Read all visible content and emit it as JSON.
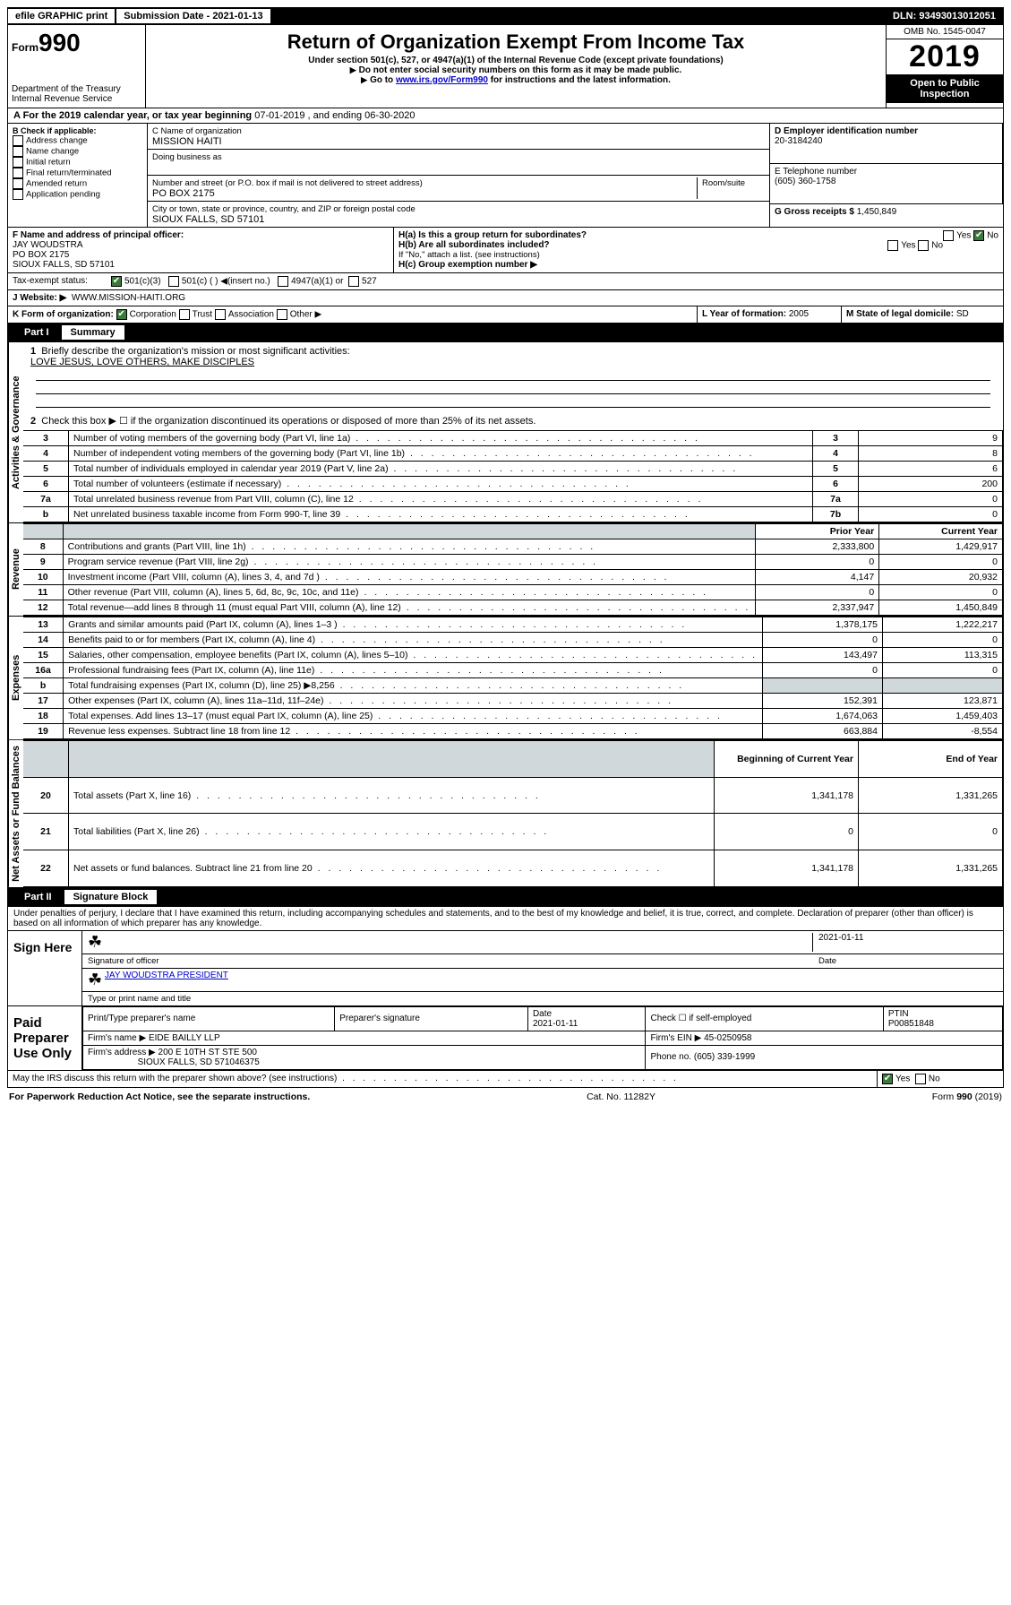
{
  "top": {
    "efile": "efile GRAPHIC print",
    "sub_date_label": "Submission Date - 2021-01-13",
    "dln": "DLN: 93493013012051"
  },
  "header": {
    "form_prefix": "Form",
    "form_number": "990",
    "dept": "Department of the Treasury Internal Revenue Service",
    "title": "Return of Organization Exempt From Income Tax",
    "subtitle": "Under section 501(c), 527, or 4947(a)(1) of the Internal Revenue Code (except private foundations)",
    "note1": "Do not enter social security numbers on this form as it may be made public.",
    "note2_pre": "Go to ",
    "note2_link": "www.irs.gov/Form990",
    "note2_post": " for instructions and the latest information.",
    "omb": "OMB No. 1545-0047",
    "year": "2019",
    "inspect": "Open to Public Inspection"
  },
  "period": {
    "prefix": "A For the 2019 calendar year, or tax year beginning ",
    "begin": "07-01-2019",
    "mid": " , and ending ",
    "end": "06-30-2020"
  },
  "block_b": {
    "heading": "B Check if applicable:",
    "items": [
      "Address change",
      "Name change",
      "Initial return",
      "Final return/terminated",
      "Amended return",
      "Application pending"
    ]
  },
  "block_c": {
    "name_label": "C Name of organization",
    "name": "MISSION HAITI",
    "dba_label": "Doing business as",
    "addr_label": "Number and street (or P.O. box if mail is not delivered to street address)",
    "room_label": "Room/suite",
    "addr": "PO BOX 2175",
    "city_label": "City or town, state or province, country, and ZIP or foreign postal code",
    "city": "SIOUX FALLS, SD  57101"
  },
  "block_d": {
    "label": "D Employer identification number",
    "value": "20-3184240"
  },
  "block_e": {
    "label": "E Telephone number",
    "value": "(605) 360-1758"
  },
  "block_g": {
    "label": "G Gross receipts $",
    "value": "1,450,849"
  },
  "block_f": {
    "label": "F  Name and address of principal officer:",
    "name": "JAY WOUDSTRA",
    "addr1": "PO BOX 2175",
    "addr2": "SIOUX FALLS, SD  57101"
  },
  "block_h": {
    "a": "H(a)  Is this a group return for subordinates?",
    "b": "H(b)  Are all subordinates included?",
    "b_note": "If \"No,\" attach a list. (see instructions)",
    "c": "H(c)  Group exemption number ▶",
    "yes": "Yes",
    "no": "No"
  },
  "tax_status": {
    "label": "Tax-exempt status:",
    "opt1": "501(c)(3)",
    "opt2": "501(c) (  ) ◀(insert no.)",
    "opt3": "4947(a)(1) or",
    "opt4": "527"
  },
  "website": {
    "label": "J   Website: ▶",
    "value": "WWW.MISSION-HAITI.ORG"
  },
  "block_k": {
    "label": "K Form of organization:",
    "corp": "Corporation",
    "trust": "Trust",
    "assoc": "Association",
    "other": "Other ▶"
  },
  "block_l": {
    "label": "L Year of formation:",
    "value": "2005"
  },
  "block_m": {
    "label": "M State of legal domicile:",
    "value": "SD"
  },
  "part1": {
    "label": "Part I",
    "title": "Summary"
  },
  "summary": {
    "q1": "Briefly describe the organization's mission or most significant activities:",
    "mission": "LOVE JESUS, LOVE OTHERS, MAKE DISCIPLES",
    "q2": "Check this box ▶ ☐  if the organization discontinued its operations or disposed of more than 25% of its net assets.",
    "rows_gov": [
      {
        "n": "3",
        "d": "Number of voting members of the governing body (Part VI, line 1a)",
        "c": "3",
        "v": "9"
      },
      {
        "n": "4",
        "d": "Number of independent voting members of the governing body (Part VI, line 1b)",
        "c": "4",
        "v": "8"
      },
      {
        "n": "5",
        "d": "Total number of individuals employed in calendar year 2019 (Part V, line 2a)",
        "c": "5",
        "v": "6"
      },
      {
        "n": "6",
        "d": "Total number of volunteers (estimate if necessary)",
        "c": "6",
        "v": "200"
      },
      {
        "n": "7a",
        "d": "Total unrelated business revenue from Part VIII, column (C), line 12",
        "c": "7a",
        "v": "0"
      },
      {
        "n": "b",
        "d": "Net unrelated business taxable income from Form 990-T, line 39",
        "c": "7b",
        "v": "0"
      }
    ],
    "col_prior": "Prior Year",
    "col_current": "Current Year",
    "rows_rev": [
      {
        "n": "8",
        "d": "Contributions and grants (Part VIII, line 1h)",
        "p": "2,333,800",
        "c": "1,429,917"
      },
      {
        "n": "9",
        "d": "Program service revenue (Part VIII, line 2g)",
        "p": "0",
        "c": "0"
      },
      {
        "n": "10",
        "d": "Investment income (Part VIII, column (A), lines 3, 4, and 7d )",
        "p": "4,147",
        "c": "20,932"
      },
      {
        "n": "11",
        "d": "Other revenue (Part VIII, column (A), lines 5, 6d, 8c, 9c, 10c, and 11e)",
        "p": "0",
        "c": "0"
      },
      {
        "n": "12",
        "d": "Total revenue—add lines 8 through 11 (must equal Part VIII, column (A), line 12)",
        "p": "2,337,947",
        "c": "1,450,849"
      }
    ],
    "rows_exp": [
      {
        "n": "13",
        "d": "Grants and similar amounts paid (Part IX, column (A), lines 1–3 )",
        "p": "1,378,175",
        "c": "1,222,217"
      },
      {
        "n": "14",
        "d": "Benefits paid to or for members (Part IX, column (A), line 4)",
        "p": "0",
        "c": "0"
      },
      {
        "n": "15",
        "d": "Salaries, other compensation, employee benefits (Part IX, column (A), lines 5–10)",
        "p": "143,497",
        "c": "113,315"
      },
      {
        "n": "16a",
        "d": "Professional fundraising fees (Part IX, column (A), line 11e)",
        "p": "0",
        "c": "0"
      },
      {
        "n": "b",
        "d": "Total fundraising expenses (Part IX, column (D), line 25) ▶8,256",
        "p": "",
        "c": "",
        "shade": true
      },
      {
        "n": "17",
        "d": "Other expenses (Part IX, column (A), lines 11a–11d, 11f–24e)",
        "p": "152,391",
        "c": "123,871"
      },
      {
        "n": "18",
        "d": "Total expenses. Add lines 13–17 (must equal Part IX, column (A), line 25)",
        "p": "1,674,063",
        "c": "1,459,403"
      },
      {
        "n": "19",
        "d": "Revenue less expenses. Subtract line 18 from line 12",
        "p": "663,884",
        "c": "-8,554"
      }
    ],
    "col_begin": "Beginning of Current Year",
    "col_end": "End of Year",
    "rows_net": [
      {
        "n": "20",
        "d": "Total assets (Part X, line 16)",
        "p": "1,341,178",
        "c": "1,331,265"
      },
      {
        "n": "21",
        "d": "Total liabilities (Part X, line 26)",
        "p": "0",
        "c": "0"
      },
      {
        "n": "22",
        "d": "Net assets or fund balances. Subtract line 21 from line 20",
        "p": "1,341,178",
        "c": "1,331,265"
      }
    ],
    "vlabels": [
      "Activities & Governance",
      "Revenue",
      "Expenses",
      "Net Assets or Fund Balances"
    ]
  },
  "part2": {
    "label": "Part II",
    "title": "Signature Block"
  },
  "perjury": "Under penalties of perjury, I declare that I have examined this return, including accompanying schedules and statements, and to the best of my knowledge and belief, it is true, correct, and complete. Declaration of preparer (other than officer) is based on all information of which preparer has any knowledge.",
  "sign": {
    "label": "Sign Here",
    "sig_officer": "Signature of officer",
    "date": "2021-01-11",
    "date_label": "Date",
    "name": "JAY WOUDSTRA  PRESIDENT",
    "name_label": "Type or print name and title"
  },
  "paid": {
    "label": "Paid Preparer Use Only",
    "h1": "Print/Type preparer's name",
    "h2": "Preparer's signature",
    "h3": "Date",
    "h3v": "2021-01-11",
    "h4": "Check ☐ if self-employed",
    "h5": "PTIN",
    "h5v": "P00851848",
    "firm_name_label": "Firm's name    ▶",
    "firm_name": "EIDE BAILLY LLP",
    "firm_ein_label": "Firm's EIN ▶",
    "firm_ein": "45-0250958",
    "firm_addr_label": "Firm's address ▶",
    "firm_addr1": "200 E 10TH ST STE 500",
    "firm_addr2": "SIOUX FALLS, SD  571046375",
    "phone_label": "Phone no.",
    "phone": "(605) 339-1999"
  },
  "discuss": {
    "q": "May the IRS discuss this return with the preparer shown above? (see instructions)",
    "yes": "Yes",
    "no": "No"
  },
  "footer": {
    "left": "For Paperwork Reduction Act Notice, see the separate instructions.",
    "mid": "Cat. No. 11282Y",
    "right": "Form 990 (2019)"
  }
}
